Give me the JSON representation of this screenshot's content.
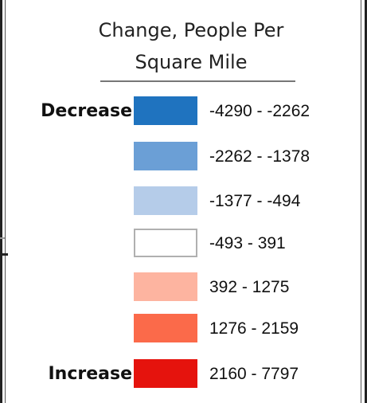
{
  "legend": {
    "title_line1": "Change, People Per",
    "title_line2": "Square Mile",
    "decrease_label": "Decrease",
    "increase_label": "Increase",
    "items": [
      {
        "range": "-4290 - -2262",
        "color": "#1f73bf"
      },
      {
        "range": "-2262 - -1378",
        "color": "#6b9fd6"
      },
      {
        "range": "-1377 - -494",
        "color": "#b5cce9"
      },
      {
        "range": "-493 - 391",
        "color": "#ffffff"
      },
      {
        "range": "392 - 1275",
        "color": "#fdb4a0"
      },
      {
        "range": "1276 - 2159",
        "color": "#fb6a4a"
      },
      {
        "range": "2160 - 7797",
        "color": "#e5130d"
      }
    ]
  }
}
